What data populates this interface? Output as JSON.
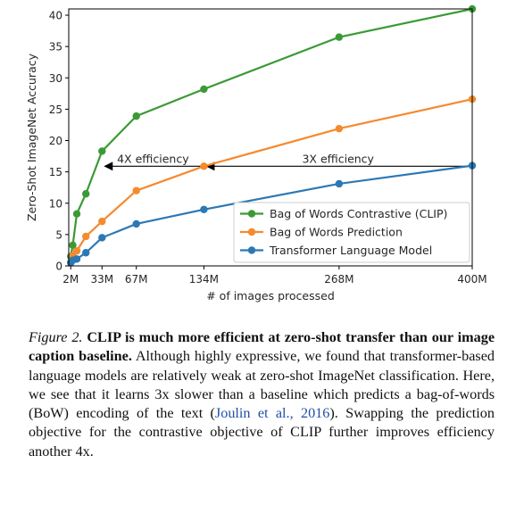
{
  "chart_data": {
    "type": "line",
    "xlabel": "# of images processed",
    "ylabel": "Zero-Shot ImageNet Accuracy",
    "xlim": [
      0,
      400
    ],
    "ylim": [
      0,
      41
    ],
    "x_ticks": [
      {
        "value": 2,
        "label": "2M"
      },
      {
        "value": 33,
        "label": "33M"
      },
      {
        "value": 67,
        "label": "67M"
      },
      {
        "value": 134,
        "label": "134M"
      },
      {
        "value": 268,
        "label": "268M"
      },
      {
        "value": 400,
        "label": "400M"
      }
    ],
    "y_ticks": [
      0,
      5,
      10,
      15,
      20,
      25,
      30,
      35,
      40
    ],
    "legend_position": "lower-right",
    "series": [
      {
        "name": "Bag of Words Contrastive (CLIP)",
        "color": "#3a9a35",
        "x": [
          2,
          4,
          8,
          17,
          33,
          67,
          134,
          268,
          400
        ],
        "y": [
          1.5,
          3.3,
          8.3,
          11.5,
          18.3,
          23.9,
          28.2,
          36.5,
          41.0
        ]
      },
      {
        "name": "Bag of Words Prediction",
        "color": "#f58a2e",
        "x": [
          2,
          4,
          8,
          17,
          33,
          67,
          134,
          268,
          400
        ],
        "y": [
          0.6,
          1.6,
          2.4,
          4.7,
          7.1,
          12.0,
          15.9,
          21.9,
          26.6
        ]
      },
      {
        "name": "Transformer Language Model",
        "color": "#2b78b5",
        "x": [
          2,
          4,
          8,
          17,
          33,
          67,
          134,
          268,
          400
        ],
        "y": [
          0.5,
          0.9,
          1.1,
          2.1,
          4.5,
          6.7,
          9.0,
          13.1,
          16.0
        ]
      }
    ],
    "annotations": [
      {
        "text": "4X efficiency",
        "y": 15.9,
        "x_from": 134,
        "x_to": 33
      },
      {
        "text": "3X efficiency",
        "y": 15.9,
        "x_from": 400,
        "x_to": 134
      }
    ]
  },
  "caption": {
    "label": "Figure 2.",
    "title": "CLIP is much more efficient at zero-shot transfer than our image caption baseline.",
    "body_1": "Although highly expressive, we found that transformer-based language models are relatively weak at zero-shot ImageNet classification. Here, we see that it learns 3x slower than a baseline which predicts a bag-of-words (BoW) encoding of the text (",
    "citation": "Joulin et al., 2016",
    "body_2": "). Swapping the prediction objective for the contrastive objective of CLIP further improves efficiency another 4x."
  }
}
